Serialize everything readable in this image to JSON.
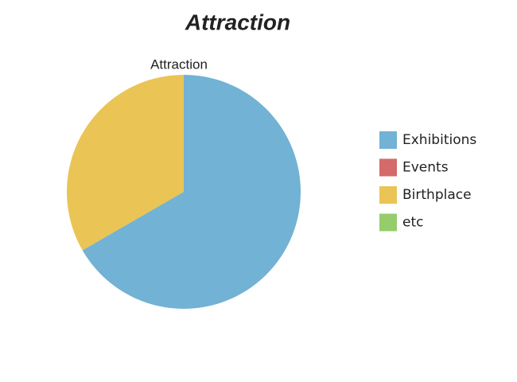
{
  "chart_data": {
    "type": "pie",
    "title": "Attraction",
    "subtitle": "Attraction",
    "categories": [
      "Exhibitions",
      "Events",
      "Birthplace",
      "etc"
    ],
    "values": [
      2,
      0,
      1,
      0
    ],
    "colors": [
      "#72b2d4",
      "#d46a6a",
      "#eac455",
      "#95cd6c"
    ],
    "legend": "right"
  }
}
